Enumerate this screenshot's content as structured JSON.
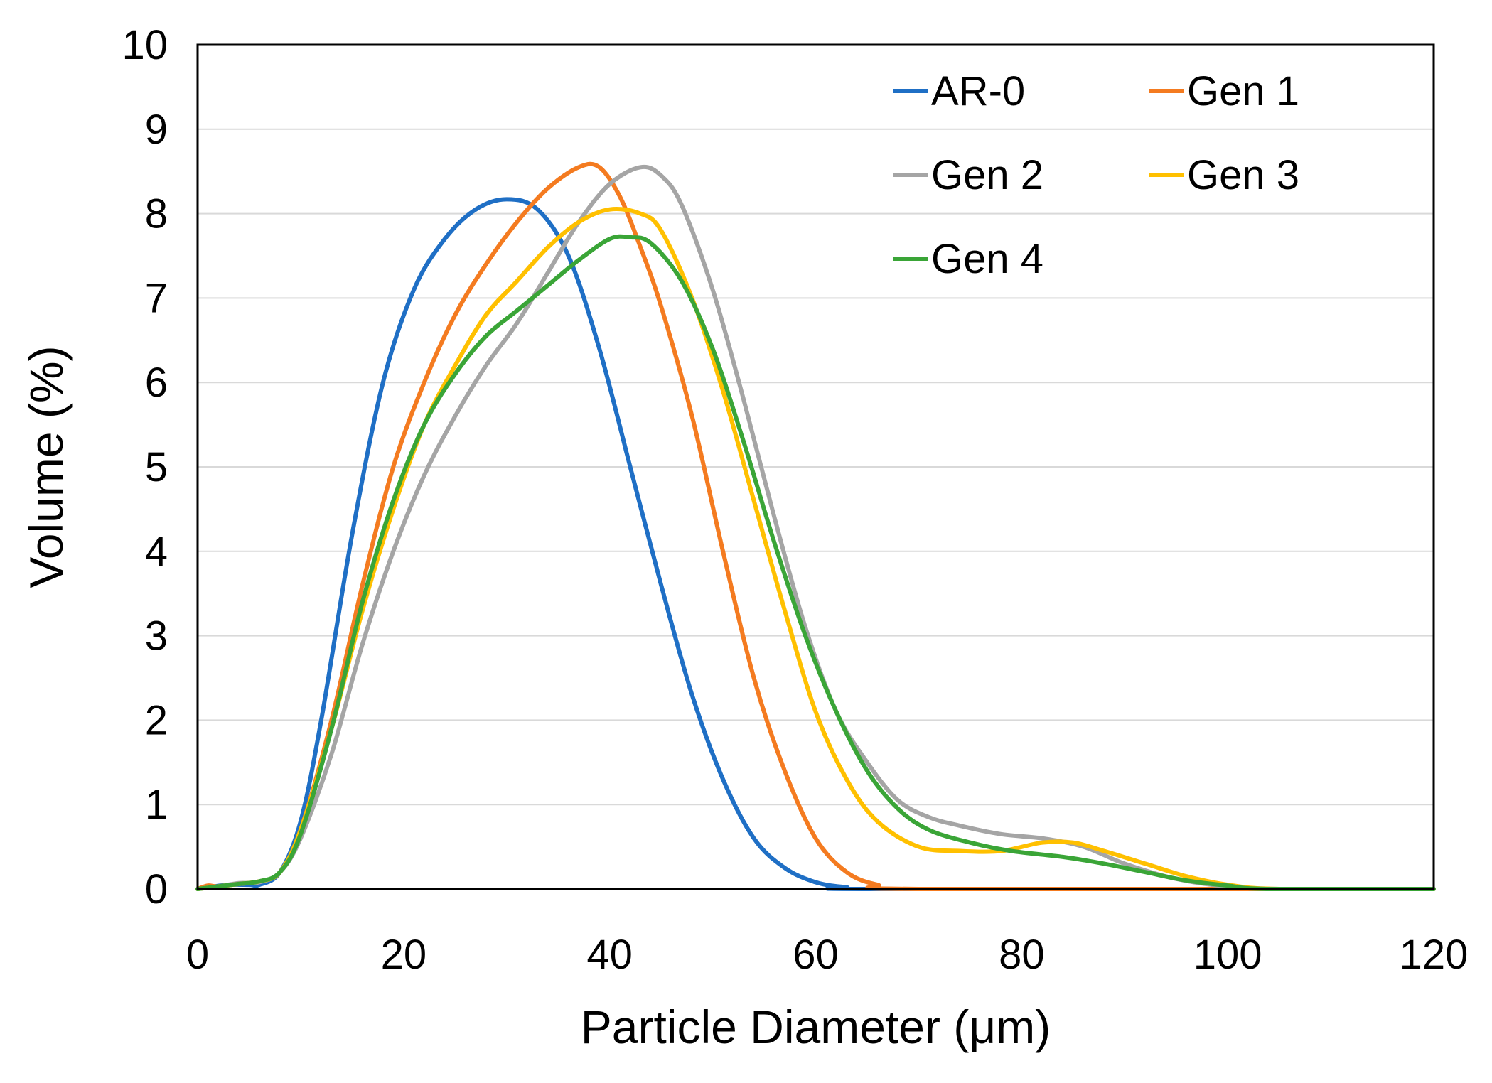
{
  "chart_data": {
    "type": "line",
    "title": "",
    "xlabel": "Particle Diameter (μm)",
    "ylabel": "Volume (%)",
    "xlim": [
      0,
      120
    ],
    "ylim": [
      0,
      10
    ],
    "x_ticks": [
      0,
      20,
      40,
      60,
      80,
      100,
      120
    ],
    "y_ticks": [
      0,
      1,
      2,
      3,
      4,
      5,
      6,
      7,
      8,
      9,
      10
    ],
    "grid": "horizontal",
    "legend_position": "top-right",
    "series": [
      {
        "name": "AR-0",
        "color": "#1f6fc5",
        "points": [
          [
            0,
            0
          ],
          [
            1,
            0.02
          ],
          [
            3,
            0.05
          ],
          [
            5,
            0.05
          ],
          [
            6,
            0.05
          ],
          [
            8,
            0.2
          ],
          [
            10,
            0.8
          ],
          [
            12,
            2
          ],
          [
            15,
            4.2
          ],
          [
            18,
            6
          ],
          [
            21,
            7.1
          ],
          [
            24,
            7.7
          ],
          [
            27,
            8.05
          ],
          [
            30,
            8.17
          ],
          [
            33,
            8.05
          ],
          [
            36,
            7.5
          ],
          [
            39,
            6.4
          ],
          [
            42,
            5
          ],
          [
            45,
            3.6
          ],
          [
            48,
            2.3
          ],
          [
            51,
            1.3
          ],
          [
            54,
            0.6
          ],
          [
            57,
            0.25
          ],
          [
            60,
            0.08
          ],
          [
            63,
            0.02
          ],
          [
            66,
            0
          ],
          [
            120,
            0
          ]
        ]
      },
      {
        "name": "Gen 1",
        "color": "#f47b20",
        "points": [
          [
            0,
            0
          ],
          [
            1,
            0.04
          ],
          [
            2,
            0.03
          ],
          [
            4,
            0.06
          ],
          [
            6,
            0.09
          ],
          [
            8,
            0.2
          ],
          [
            10,
            0.7
          ],
          [
            13,
            2
          ],
          [
            16,
            3.6
          ],
          [
            19,
            5
          ],
          [
            22,
            6
          ],
          [
            25,
            6.8
          ],
          [
            28,
            7.4
          ],
          [
            31,
            7.9
          ],
          [
            34,
            8.3
          ],
          [
            37,
            8.55
          ],
          [
            39,
            8.55
          ],
          [
            41,
            8.2
          ],
          [
            43,
            7.6
          ],
          [
            45,
            6.9
          ],
          [
            48,
            5.6
          ],
          [
            51,
            4
          ],
          [
            54,
            2.5
          ],
          [
            57,
            1.4
          ],
          [
            60,
            0.6
          ],
          [
            63,
            0.2
          ],
          [
            66,
            0.05
          ],
          [
            70,
            0
          ],
          [
            120,
            0
          ]
        ]
      },
      {
        "name": "Gen 2",
        "color": "#a5a5a5",
        "points": [
          [
            0,
            0
          ],
          [
            2,
            0.03
          ],
          [
            4,
            0.07
          ],
          [
            6,
            0.08
          ],
          [
            8,
            0.2
          ],
          [
            10,
            0.6
          ],
          [
            13,
            1.6
          ],
          [
            16,
            2.9
          ],
          [
            19,
            4
          ],
          [
            22,
            4.9
          ],
          [
            25,
            5.6
          ],
          [
            28,
            6.2
          ],
          [
            31,
            6.7
          ],
          [
            34,
            7.3
          ],
          [
            37,
            7.9
          ],
          [
            40,
            8.35
          ],
          [
            43,
            8.55
          ],
          [
            45,
            8.45
          ],
          [
            47,
            8.1
          ],
          [
            50,
            7.1
          ],
          [
            53,
            5.8
          ],
          [
            56,
            4.4
          ],
          [
            59,
            3.1
          ],
          [
            62,
            2.1
          ],
          [
            65,
            1.5
          ],
          [
            68,
            1.05
          ],
          [
            71,
            0.85
          ],
          [
            74,
            0.75
          ],
          [
            78,
            0.65
          ],
          [
            82,
            0.6
          ],
          [
            86,
            0.5
          ],
          [
            90,
            0.3
          ],
          [
            95,
            0.12
          ],
          [
            100,
            0.03
          ],
          [
            105,
            0
          ],
          [
            120,
            0
          ]
        ]
      },
      {
        "name": "Gen 3",
        "color": "#ffc000",
        "points": [
          [
            0,
            0
          ],
          [
            2,
            0.03
          ],
          [
            4,
            0.06
          ],
          [
            6,
            0.09
          ],
          [
            8,
            0.2
          ],
          [
            10,
            0.7
          ],
          [
            13,
            1.9
          ],
          [
            16,
            3.3
          ],
          [
            19,
            4.5
          ],
          [
            22,
            5.5
          ],
          [
            25,
            6.2
          ],
          [
            28,
            6.8
          ],
          [
            31,
            7.2
          ],
          [
            34,
            7.6
          ],
          [
            37,
            7.9
          ],
          [
            40,
            8.05
          ],
          [
            43,
            8.0
          ],
          [
            45,
            7.8
          ],
          [
            48,
            7.0
          ],
          [
            51,
            5.9
          ],
          [
            54,
            4.6
          ],
          [
            57,
            3.3
          ],
          [
            60,
            2.1
          ],
          [
            63,
            1.3
          ],
          [
            66,
            0.8
          ],
          [
            70,
            0.5
          ],
          [
            74,
            0.45
          ],
          [
            78,
            0.45
          ],
          [
            82,
            0.55
          ],
          [
            85,
            0.55
          ],
          [
            88,
            0.45
          ],
          [
            92,
            0.3
          ],
          [
            96,
            0.15
          ],
          [
            100,
            0.05
          ],
          [
            105,
            0
          ],
          [
            120,
            0
          ]
        ]
      },
      {
        "name": "Gen 4",
        "color": "#3aa537",
        "points": [
          [
            0,
            0
          ],
          [
            2,
            0.03
          ],
          [
            4,
            0.06
          ],
          [
            6,
            0.09
          ],
          [
            8,
            0.2
          ],
          [
            10,
            0.65
          ],
          [
            13,
            1.9
          ],
          [
            16,
            3.4
          ],
          [
            19,
            4.6
          ],
          [
            22,
            5.5
          ],
          [
            25,
            6.1
          ],
          [
            28,
            6.55
          ],
          [
            31,
            6.85
          ],
          [
            34,
            7.15
          ],
          [
            37,
            7.45
          ],
          [
            40,
            7.7
          ],
          [
            42,
            7.72
          ],
          [
            44,
            7.65
          ],
          [
            47,
            7.2
          ],
          [
            50,
            6.4
          ],
          [
            53,
            5.3
          ],
          [
            56,
            4.1
          ],
          [
            59,
            3
          ],
          [
            62,
            2.1
          ],
          [
            65,
            1.4
          ],
          [
            68,
            0.95
          ],
          [
            71,
            0.7
          ],
          [
            75,
            0.55
          ],
          [
            79,
            0.45
          ],
          [
            84,
            0.38
          ],
          [
            88,
            0.3
          ],
          [
            92,
            0.2
          ],
          [
            96,
            0.1
          ],
          [
            100,
            0.04
          ],
          [
            104,
            0
          ],
          [
            120,
            0
          ]
        ]
      }
    ]
  }
}
